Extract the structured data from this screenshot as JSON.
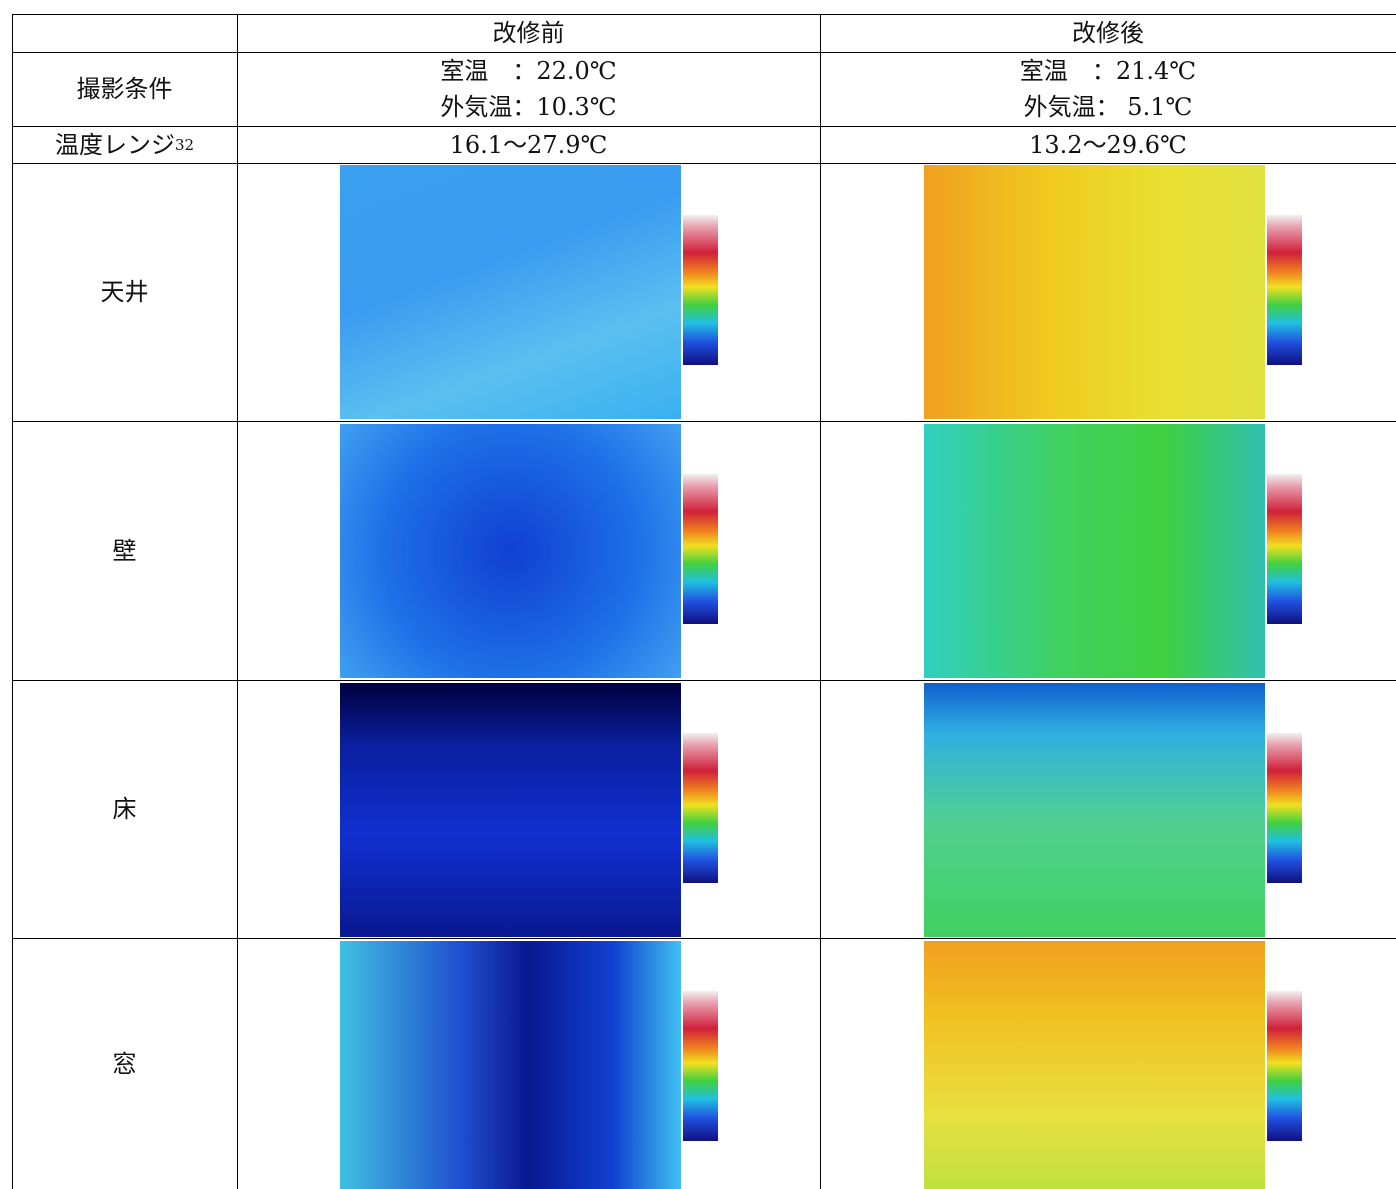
{
  "table": {
    "header": [
      "改修前",
      "改修後"
    ],
    "rows": [
      {
        "label": "撮影条件",
        "before": [
          "室温　：22.0℃",
          "外気温：10.3℃"
        ],
        "after": [
          "室温　：21.4℃",
          "外気温： 5.1℃"
        ]
      },
      {
        "label": "温度レンジ",
        "note": "32",
        "before": "16.1～27.9℃",
        "after": "13.2～29.6℃"
      },
      {
        "label": "天井"
      },
      {
        "label": "壁"
      },
      {
        "label": "床"
      },
      {
        "label": "窓"
      }
    ]
  }
}
